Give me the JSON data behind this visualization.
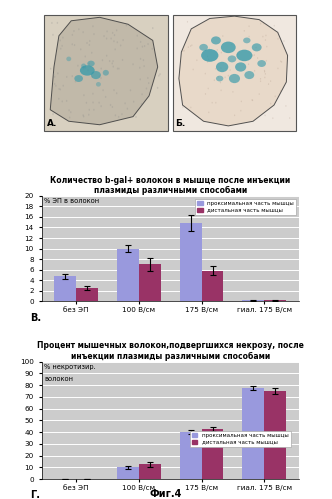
{
  "fig_label": "Фиг.4",
  "photo_A_label": "А.",
  "photo_B_label": "Б.",
  "chart1": {
    "title_line1": "Количество b-gal+ волокон в мышце после инъекции",
    "title_line2": "плазмиды различными способами",
    "ylabel": "% ЭП в волокон",
    "categories": [
      "без ЭП",
      "100 В/см",
      "175 В/см",
      "гиал. 175 В/см"
    ],
    "proximal": [
      4.7,
      10.0,
      14.8,
      0.15
    ],
    "distal": [
      2.5,
      7.0,
      5.8,
      0.15
    ],
    "proximal_err": [
      0.5,
      0.7,
      1.5,
      0.05
    ],
    "distal_err": [
      0.3,
      1.2,
      0.8,
      0.05
    ],
    "ylim": [
      0,
      20
    ],
    "yticks": [
      0,
      2,
      4,
      6,
      8,
      10,
      12,
      14,
      16,
      18,
      20
    ],
    "bar_width": 0.35,
    "proximal_color": "#9999dd",
    "distal_color": "#993366",
    "legend_proximal": "проксимальная часть мышцы",
    "legend_distal": "дистальная часть мышцы",
    "panel_label": "В.",
    "bg_color": "#cccccc"
  },
  "chart2": {
    "title_line1": "Процент мышечных волокон,подвергшихся некрозу, после",
    "title_line2": "инъекции плазмиды различными способами",
    "ylabel_line1": "% некротизир.",
    "ylabel_line2": "волокон",
    "categories": [
      "без ЭП",
      "100 В/см",
      "175 В/см",
      "гиал. 175 В/см"
    ],
    "proximal": [
      0.3,
      10.0,
      40.0,
      77.5
    ],
    "distal": [
      0.3,
      12.5,
      42.5,
      75.0
    ],
    "proximal_err": [
      0.1,
      1.5,
      2.0,
      2.0
    ],
    "distal_err": [
      0.1,
      2.0,
      2.0,
      2.5
    ],
    "ylim": [
      0,
      100
    ],
    "yticks": [
      0.0,
      10.0,
      20.0,
      30.0,
      40.0,
      50.0,
      60.0,
      70.0,
      80.0,
      90.0,
      100.0
    ],
    "bar_width": 0.35,
    "proximal_color": "#9999dd",
    "distal_color": "#993366",
    "legend_proximal": "проксимальная часть мышцы",
    "legend_distal": "дистальная часть мышцы",
    "panel_label": "Г.",
    "bg_color": "#cccccc"
  }
}
